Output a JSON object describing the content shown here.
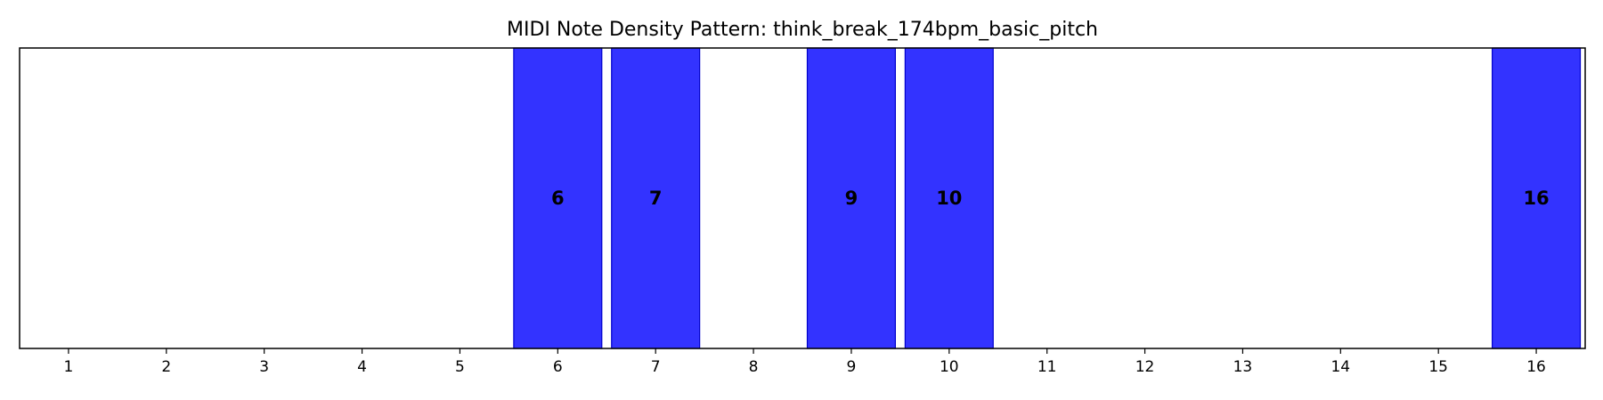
{
  "chart_data": {
    "type": "bar",
    "title": "MIDI Note Density Pattern: think_break_174bpm_basic_pitch",
    "xlabel": "",
    "ylabel": "",
    "categories": [
      "1",
      "2",
      "3",
      "4",
      "5",
      "6",
      "7",
      "8",
      "9",
      "10",
      "11",
      "12",
      "13",
      "14",
      "15",
      "16"
    ],
    "values": [
      0,
      0,
      0,
      0,
      0,
      1,
      1,
      0,
      1,
      1,
      0,
      0,
      0,
      0,
      0,
      1
    ],
    "bar_labels": [
      "",
      "",
      "",
      "",
      "",
      "6",
      "7",
      "",
      "9",
      "10",
      "",
      "",
      "",
      "",
      "",
      "16"
    ],
    "xlim": [
      0.5,
      16.5
    ],
    "ylim": [
      0,
      1
    ],
    "grid": false,
    "y_ticks_visible": false,
    "colors": {
      "bar_fill": "#3333ff",
      "bar_edge": "#0000cc"
    }
  }
}
